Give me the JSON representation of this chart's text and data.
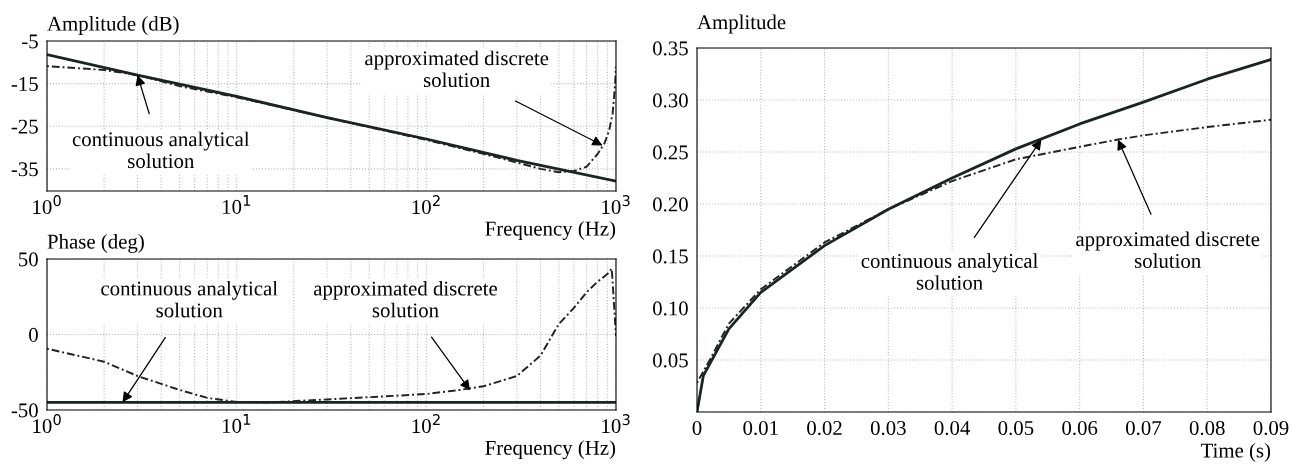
{
  "chart_data": [
    {
      "type": "line",
      "ylabel": "Amplitude (dB)",
      "xlabel": "Frequency (Hz)",
      "log": "x",
      "grid": true,
      "xlim": [
        1,
        1000
      ],
      "ylim": [
        -40.2,
        -5
      ],
      "xticks": [
        {
          "value": 1,
          "label": "10$^{0}$"
        },
        {
          "value": 10,
          "label": "10$^{1}$"
        },
        {
          "value": 100,
          "label": "10$^{2}$"
        },
        {
          "value": 1000,
          "label": "10$^{3}$"
        }
      ],
      "yticks": [
        -5,
        -15,
        -25,
        -35
      ],
      "series": [
        {
          "color": "#1a2420",
          "line_style": "solid",
          "x": [
            1,
            3,
            10,
            30,
            100,
            300,
            1000
          ],
          "values": [
            -8.2,
            -13.0,
            -18.0,
            -23.0,
            -28.0,
            -33.0,
            -37.9
          ]
        },
        {
          "color": "#222222",
          "line_style": "dotted",
          "x": [
            1,
            2,
            3,
            5,
            10,
            30,
            100,
            200,
            300,
            400,
            500,
            600,
            700,
            800,
            870,
            920,
            960,
            990,
            1000
          ],
          "values": [
            -10.9,
            -11.8,
            -13.0,
            -15.6,
            -18.2,
            -23.0,
            -28.2,
            -31.5,
            -33.5,
            -35.0,
            -35.8,
            -35.5,
            -34.5,
            -31.5,
            -29.0,
            -26.0,
            -22.0,
            -15.0,
            -11.0
          ]
        }
      ],
      "annotations": [
        {
          "text": "continuous analytical\nsolution",
          "x": 3,
          "y": -13.0
        },
        {
          "text": "approximated discrete\nsolution",
          "x": 850,
          "y": -29.5
        }
      ]
    },
    {
      "type": "line",
      "ylabel": "Phase (deg)",
      "xlabel": "Frequency (Hz)",
      "log": "x",
      "grid": true,
      "xlim": [
        1,
        1000
      ],
      "ylim": [
        -50,
        50
      ],
      "xticks": [
        {
          "value": 1,
          "label": "10$^{0}$"
        },
        {
          "value": 10,
          "label": "10$^{1}$"
        },
        {
          "value": 100,
          "label": "10$^{2}$"
        },
        {
          "value": 1000,
          "label": "10$^{3}$"
        }
      ],
      "yticks": [
        -50,
        0,
        50
      ],
      "series": [
        {
          "color": "#1a2420",
          "line_style": "solid",
          "x": [
            1,
            1000
          ],
          "values": [
            -45,
            -45
          ]
        },
        {
          "color": "#222222",
          "line_style": "dotted",
          "x": [
            1,
            2,
            3,
            5,
            7,
            10,
            15,
            30,
            60,
            100,
            150,
            200,
            300,
            400,
            500,
            600,
            700,
            800,
            900,
            950,
            1000
          ],
          "values": [
            -9.4,
            -18,
            -27.5,
            -36.7,
            -42,
            -44.7,
            -45,
            -43,
            -41,
            -39.4,
            -36.7,
            -34.3,
            -27.5,
            -14,
            7,
            17.6,
            28,
            35,
            40,
            43.6,
            -1
          ]
        }
      ],
      "annotations": [
        {
          "text": "continuous analytical\nsolution",
          "x": 2.5,
          "y": -45
        },
        {
          "text": "approximated discrete\nsolution",
          "x": 170,
          "y": -37
        }
      ]
    },
    {
      "type": "line",
      "ylabel": "Amplitude",
      "xlabel": "Time (s)",
      "grid": true,
      "xlim": [
        0,
        0.09
      ],
      "ylim": [
        0,
        0.35
      ],
      "xticks": [
        0,
        0.01,
        0.02,
        0.03,
        0.04,
        0.05,
        0.06,
        0.07,
        0.08,
        0.09
      ],
      "yticks": [
        {
          "value": 0,
          "label": null
        },
        {
          "value": 0.05,
          "label": "0.05"
        },
        {
          "value": 0.1,
          "label": "0.10"
        },
        {
          "value": 0.15,
          "label": "0.15"
        },
        {
          "value": 0.2,
          "label": "0.20"
        },
        {
          "value": 0.25,
          "label": "0.25"
        },
        {
          "value": 0.3,
          "label": "0.30"
        },
        {
          "value": 0.35,
          "label": "0.35"
        }
      ],
      "series": [
        {
          "color": "#1a2420",
          "line_style": "solid",
          "x": [
            0,
            0.001,
            0.005,
            0.01,
            0.02,
            0.03,
            0.04,
            0.05,
            0.06,
            0.07,
            0.08,
            0.09
          ],
          "values": [
            0,
            0.035,
            0.08,
            0.115,
            0.16,
            0.195,
            0.225,
            0.253,
            0.277,
            0.298,
            0.32,
            0.339
          ]
        },
        {
          "color": "#222222",
          "line_style": "dotted",
          "x": [
            0,
            0.002,
            0.005,
            0.01,
            0.02,
            0.03,
            0.04,
            0.05,
            0.06,
            0.066,
            0.07,
            0.08,
            0.09
          ],
          "values": [
            0.028,
            0.05,
            0.085,
            0.118,
            0.163,
            0.195,
            0.222,
            0.243,
            0.255,
            0.262,
            0.266,
            0.274,
            0.281
          ]
        }
      ],
      "annotations": [
        {
          "text": "continuous analytical\nsolution",
          "x": 0.054,
          "y": 0.262
        },
        {
          "text": "approximated discrete\nsolution",
          "x": 0.066,
          "y": 0.262
        }
      ]
    }
  ]
}
